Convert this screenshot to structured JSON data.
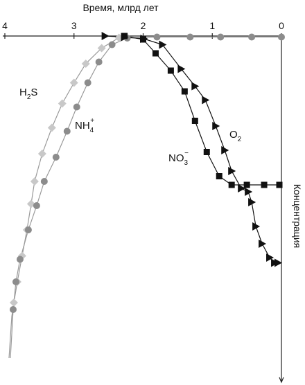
{
  "chart_data": {
    "type": "scatter",
    "xlabel": "Время, млрд лет",
    "ylabel": "Концентрация",
    "x_ticks": [
      "4",
      "3",
      "2",
      "1",
      "0"
    ],
    "xlim": [
      4,
      0
    ],
    "ylim": [
      0,
      100
    ],
    "grid": false,
    "legend": "none",
    "series": [
      {
        "name": "H2S",
        "label_main": "H",
        "label_sub": "2",
        "label_tail": "S",
        "marker": "diamond",
        "color": "#c8c8c8",
        "line_color": "#9a9a9a",
        "x": [
          2.35,
          2.6,
          2.83,
          3.0,
          3.17,
          3.32,
          3.46,
          3.57,
          3.62,
          3.68,
          3.75,
          3.82,
          3.87
        ],
        "y": [
          0.5,
          3.5,
          8,
          13.5,
          19.5,
          26.5,
          34,
          42,
          48.5,
          56,
          63.5,
          71,
          77
        ]
      },
      {
        "name": "NH4+",
        "label_main": "NH",
        "label_sub": "4",
        "label_sup": "+",
        "marker": "circle",
        "color": "#8c8c8c",
        "line_color": "#9a9a9a",
        "x": [
          0.0,
          0.43,
          0.88,
          1.32,
          1.8,
          2.23,
          2.45,
          2.64,
          2.8,
          2.96,
          3.1,
          3.26,
          3.43,
          3.54,
          3.66,
          3.78,
          3.84,
          3.88
        ],
        "y": [
          0.3,
          0.3,
          0.3,
          0.3,
          0.3,
          0.6,
          2.5,
          7.5,
          13.5,
          20.5,
          27.5,
          35,
          42,
          49,
          56,
          64.5,
          71,
          79
        ]
      },
      {
        "name": "NO3−",
        "label_main": "NO",
        "label_sub": "3",
        "label_sup": "−",
        "marker": "square",
        "color": "#111111",
        "line_color": "#111111",
        "x": [
          2.27,
          2.0,
          1.82,
          1.6,
          1.4,
          1.25,
          1.08,
          0.9,
          0.72,
          0.5,
          0.25,
          0.03
        ],
        "y": [
          0,
          1,
          5,
          10,
          16,
          24.5,
          33.5,
          40.5,
          43,
          43,
          43,
          43
        ]
      },
      {
        "name": "O2",
        "label_main": "O",
        "label_sub": "2",
        "marker": "triangle",
        "color": "#111111",
        "line_color": "#111111",
        "x": [
          2.55,
          2.27,
          1.99,
          1.72,
          1.45,
          1.25,
          1.1,
          0.95,
          0.82,
          0.72,
          0.58,
          0.48,
          0.43,
          0.37,
          0.28,
          0.17,
          0.1,
          0.05
        ],
        "y": [
          0,
          0.3,
          0.8,
          2.5,
          9.5,
          14.5,
          18.5,
          26,
          33,
          39,
          44,
          45,
          48,
          55,
          60,
          64,
          65.5,
          65.5
        ]
      }
    ]
  }
}
